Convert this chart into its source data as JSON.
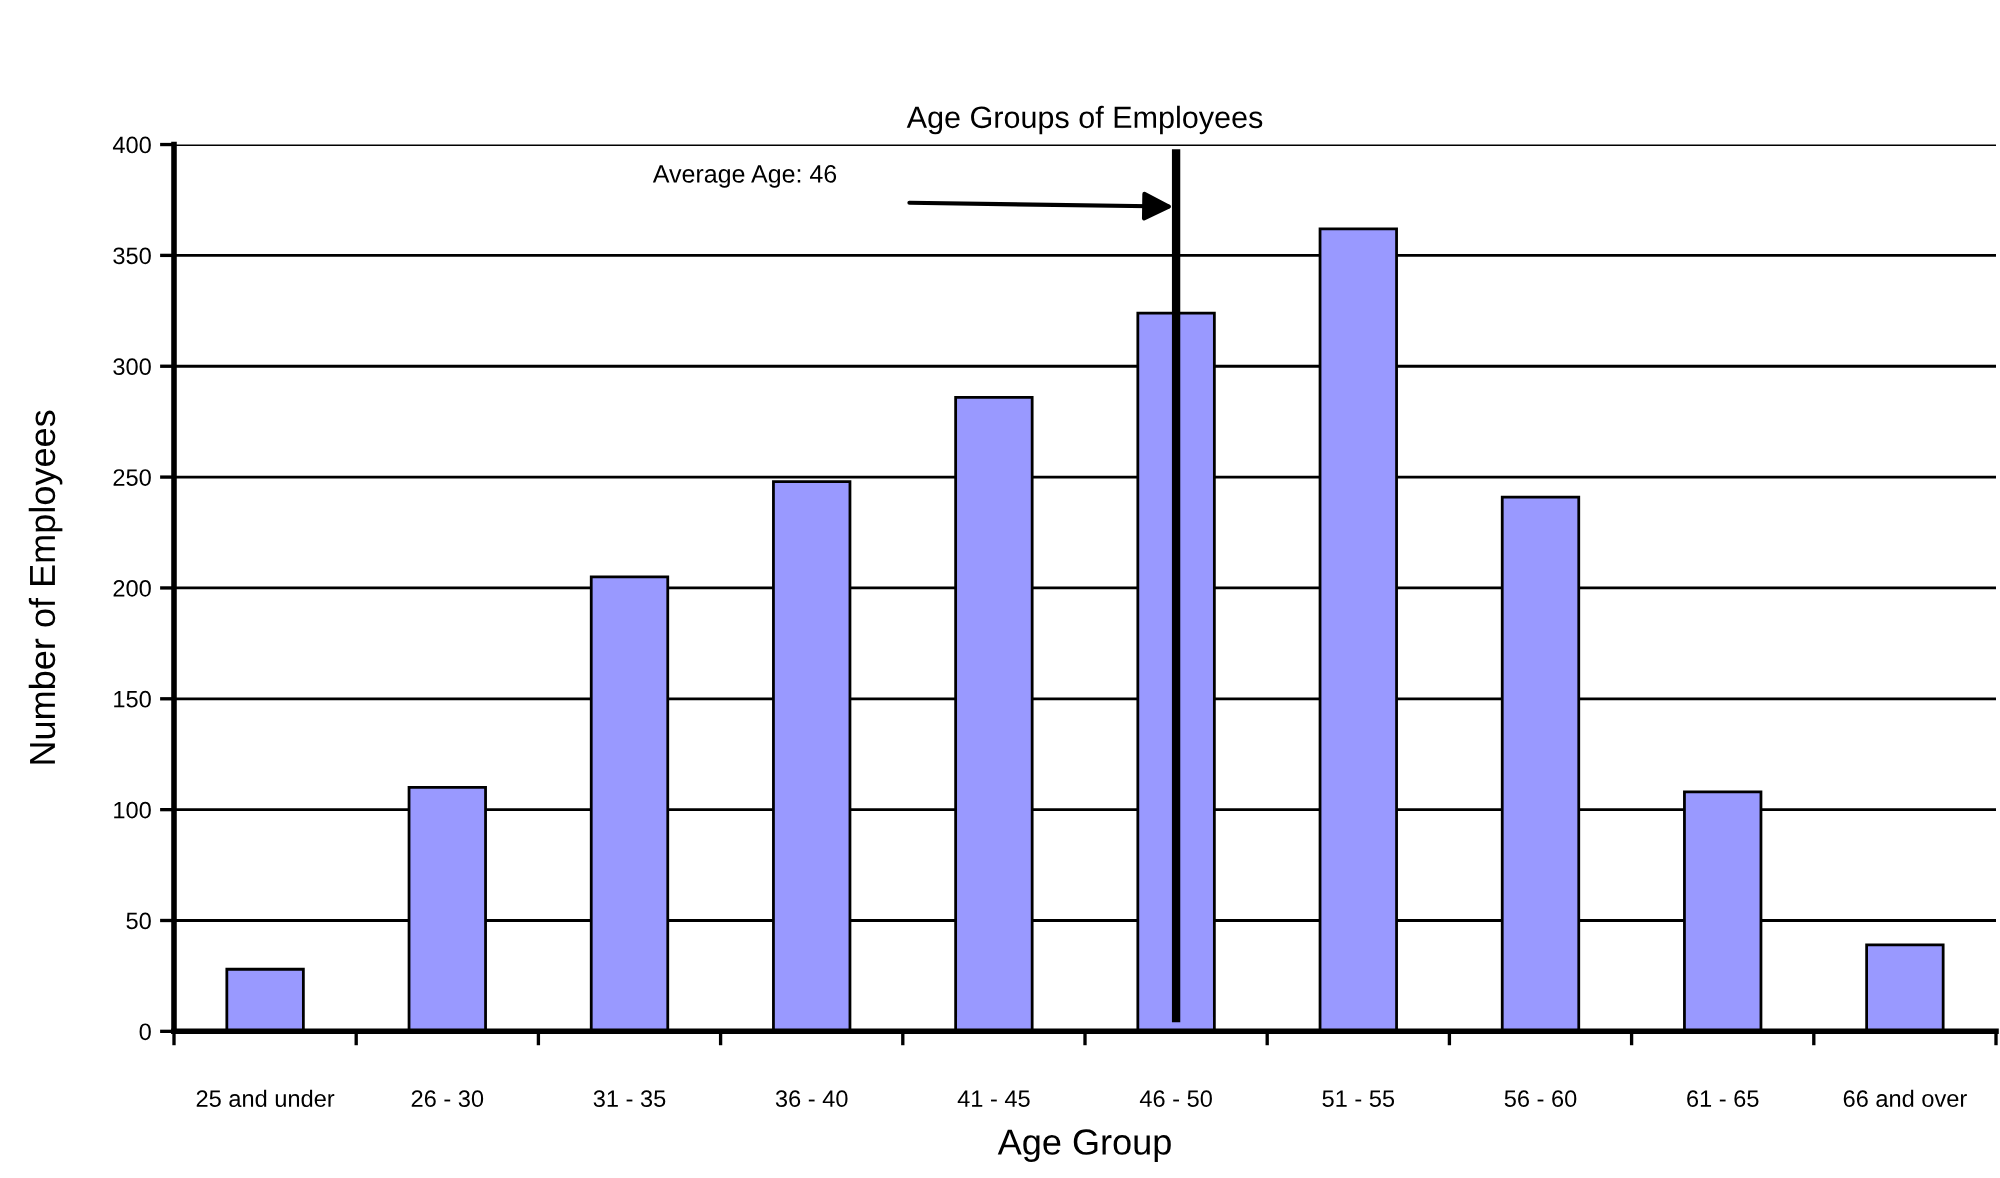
{
  "chart_data": {
    "type": "bar",
    "title": "Age Groups of Employees",
    "xlabel": "Age Group",
    "ylabel": "Number of Employees",
    "categories": [
      "25 and under",
      "26 - 30",
      "31 - 35",
      "36 - 40",
      "41 - 45",
      "46 - 50",
      "51 - 55",
      "56 - 60",
      "61 - 65",
      "66 and over"
    ],
    "values": [
      28,
      110,
      205,
      248,
      286,
      324,
      362,
      241,
      108,
      39
    ],
    "color": "#9999ff",
    "ylim": [
      0,
      400
    ],
    "yticks": [
      0,
      50,
      100,
      150,
      200,
      250,
      300,
      350,
      400
    ],
    "grid": "y",
    "ref_lines": [
      {
        "axis": "x",
        "value": "46 - 50",
        "label": "Average Age: 46",
        "color": "#000000"
      }
    ]
  }
}
